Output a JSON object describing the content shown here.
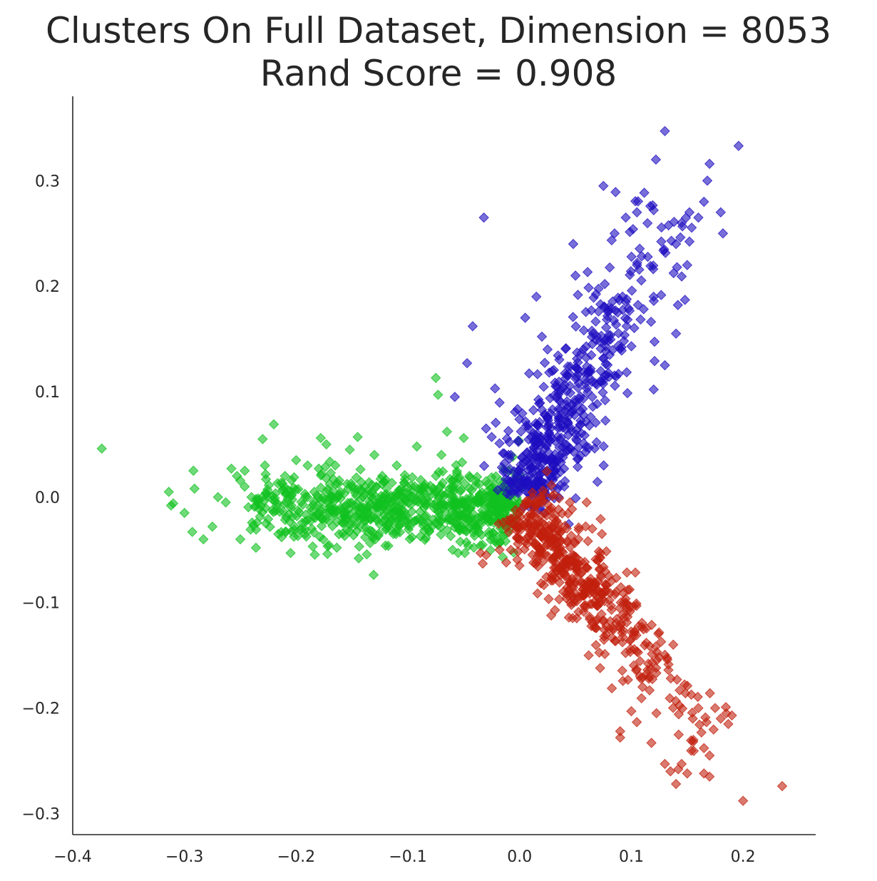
{
  "chart_data": {
    "type": "scatter",
    "title": "Clusters On Full Dataset, Dimension = 8053",
    "subtitle": "Rand Score = 0.908",
    "xlabel": "",
    "ylabel": "",
    "xlim": [
      -0.4,
      0.265
    ],
    "ylim": [
      -0.32,
      0.38
    ],
    "grid": false,
    "marker": "diamond",
    "x_ticks": [
      -0.4,
      -0.3,
      -0.2,
      -0.1,
      0.0,
      0.1,
      0.2
    ],
    "x_tick_labels": [
      "−0.4",
      "−0.3",
      "−0.2",
      "−0.1",
      "0.0",
      "0.1",
      "0.2"
    ],
    "y_ticks": [
      -0.3,
      -0.2,
      -0.1,
      0.0,
      0.1,
      0.2,
      0.3
    ],
    "y_tick_labels": [
      "−0.3",
      "−0.2",
      "−0.1",
      "0.0",
      "0.1",
      "0.2",
      "0.3"
    ],
    "series": [
      {
        "color": "#11c120",
        "points": [
          [
            -0.374,
            0.046
          ],
          [
            -0.314,
            0.005
          ],
          [
            -0.312,
            -0.008
          ],
          [
            -0.31,
            -0.006
          ],
          [
            -0.3,
            -0.015
          ],
          [
            -0.293,
            -0.033
          ],
          [
            -0.292,
            0.025
          ],
          [
            -0.291,
            0.008
          ],
          [
            -0.283,
            -0.04
          ],
          [
            -0.275,
            -0.028
          ],
          [
            -0.27,
            0.0
          ],
          [
            -0.263,
            -0.005
          ],
          [
            -0.258,
            0.027
          ],
          [
            -0.253,
            0.02
          ],
          [
            -0.25,
            -0.04
          ],
          [
            -0.246,
            0.025
          ],
          [
            -0.24,
            0.0
          ],
          [
            -0.236,
            -0.048
          ],
          [
            -0.23,
            0.055
          ],
          [
            -0.228,
            0.03
          ],
          [
            -0.22,
            0.069
          ],
          [
            -0.216,
            -0.035
          ],
          [
            -0.21,
            0.02
          ],
          [
            -0.205,
            -0.053
          ],
          [
            -0.2,
            0.035
          ],
          [
            -0.195,
            -0.03
          ],
          [
            -0.19,
            0.0
          ],
          [
            -0.178,
            0.056
          ],
          [
            -0.173,
            0.05
          ],
          [
            -0.165,
            0.03
          ],
          [
            -0.16,
            -0.01
          ],
          [
            -0.152,
            0.045
          ],
          [
            -0.145,
            0.057
          ],
          [
            -0.144,
            -0.058
          ],
          [
            -0.14,
            0.0
          ],
          [
            -0.13,
            0.04
          ],
          [
            -0.12,
            -0.046
          ],
          [
            -0.11,
            0.03
          ],
          [
            -0.1,
            -0.02
          ],
          [
            -0.092,
            0.048
          ],
          [
            -0.085,
            0.01
          ],
          [
            -0.075,
            0.113
          ],
          [
            -0.073,
            0.097
          ],
          [
            -0.07,
            0.04
          ],
          [
            -0.065,
            0.062
          ],
          [
            -0.06,
            -0.05
          ],
          [
            -0.055,
            -0.053
          ],
          [
            -0.05,
            0.056
          ],
          [
            -0.045,
            0.02
          ],
          [
            -0.03,
            0.0
          ],
          [
            -0.02,
            -0.02
          ],
          [
            -0.01,
            0.005
          ],
          [
            -0.005,
            -0.01
          ],
          [
            0.0,
            -0.005
          ]
        ],
        "bulk_points": 750,
        "bulk_shape": "arm along x from -0.24 to 0.0, centered near y = -0.01, spread about ±0.03"
      },
      {
        "color": "#1e0ec0",
        "points": [
          [
            -0.032,
            0.265
          ],
          [
            -0.042,
            0.162
          ],
          [
            -0.047,
            0.127
          ],
          [
            -0.058,
            0.095
          ],
          [
            -0.022,
            0.103
          ],
          [
            -0.03,
            0.065
          ],
          [
            -0.025,
            0.057
          ],
          [
            -0.018,
            0.051
          ],
          [
            -0.01,
            0.04
          ],
          [
            0.0,
            0.01
          ],
          [
            0.005,
            0.17
          ],
          [
            0.015,
            0.19
          ],
          [
            0.025,
            0.14
          ],
          [
            0.048,
            0.24
          ],
          [
            0.05,
            0.21
          ],
          [
            0.075,
            0.295
          ],
          [
            0.085,
            0.25
          ],
          [
            0.095,
            0.265
          ],
          [
            0.105,
            0.27
          ],
          [
            0.12,
            0.272
          ],
          [
            0.122,
            0.32
          ],
          [
            0.13,
            0.347
          ],
          [
            0.14,
            0.24
          ],
          [
            0.145,
            0.26
          ],
          [
            0.15,
            0.22
          ],
          [
            0.152,
            0.27
          ],
          [
            0.16,
            0.265
          ],
          [
            0.165,
            0.28
          ],
          [
            0.168,
            0.3
          ],
          [
            0.17,
            0.316
          ],
          [
            0.18,
            0.27
          ],
          [
            0.182,
            0.25
          ],
          [
            0.196,
            0.333
          ],
          [
            0.14,
            0.155
          ],
          [
            0.148,
            0.187
          ],
          [
            0.12,
            0.102
          ],
          [
            0.13,
            0.125
          ],
          [
            0.04,
            0.01
          ],
          [
            0.035,
            0.0
          ],
          [
            0.02,
            0.0
          ]
        ],
        "bulk_points": 520,
        "bulk_shape": "arm from (0.0, 0.0) to (0.12, 0.25) along y ≈ 2.1x, spread about ±0.03 across the arm"
      },
      {
        "color": "#c1200e",
        "points": [
          [
            -0.035,
            -0.053
          ],
          [
            -0.033,
            -0.063
          ],
          [
            -0.03,
            -0.055
          ],
          [
            -0.018,
            -0.05
          ],
          [
            -0.012,
            -0.062
          ],
          [
            0.02,
            -0.005
          ],
          [
            0.045,
            -0.005
          ],
          [
            0.06,
            -0.005
          ],
          [
            0.065,
            -0.03
          ],
          [
            0.07,
            -0.06
          ],
          [
            0.08,
            -0.075
          ],
          [
            0.09,
            -0.222
          ],
          [
            0.09,
            -0.228
          ],
          [
            0.1,
            -0.203
          ],
          [
            0.11,
            -0.18
          ],
          [
            0.118,
            -0.233
          ],
          [
            0.13,
            -0.253
          ],
          [
            0.135,
            -0.26
          ],
          [
            0.14,
            -0.272
          ],
          [
            0.142,
            -0.258
          ],
          [
            0.145,
            -0.253
          ],
          [
            0.15,
            -0.262
          ],
          [
            0.155,
            -0.21
          ],
          [
            0.16,
            -0.2
          ],
          [
            0.165,
            -0.238
          ],
          [
            0.165,
            -0.262
          ],
          [
            0.17,
            -0.265
          ],
          [
            0.17,
            -0.245
          ],
          [
            0.175,
            -0.2
          ],
          [
            0.18,
            -0.21
          ],
          [
            0.185,
            -0.205
          ],
          [
            0.19,
            -0.207
          ],
          [
            0.2,
            -0.288
          ],
          [
            0.235,
            -0.274
          ]
        ],
        "bulk_points": 520,
        "bulk_shape": "arm from (0.0, -0.01) to (0.16, -0.2) along y ≈ -1.25x, spread about ±0.03 across the arm"
      }
    ]
  }
}
